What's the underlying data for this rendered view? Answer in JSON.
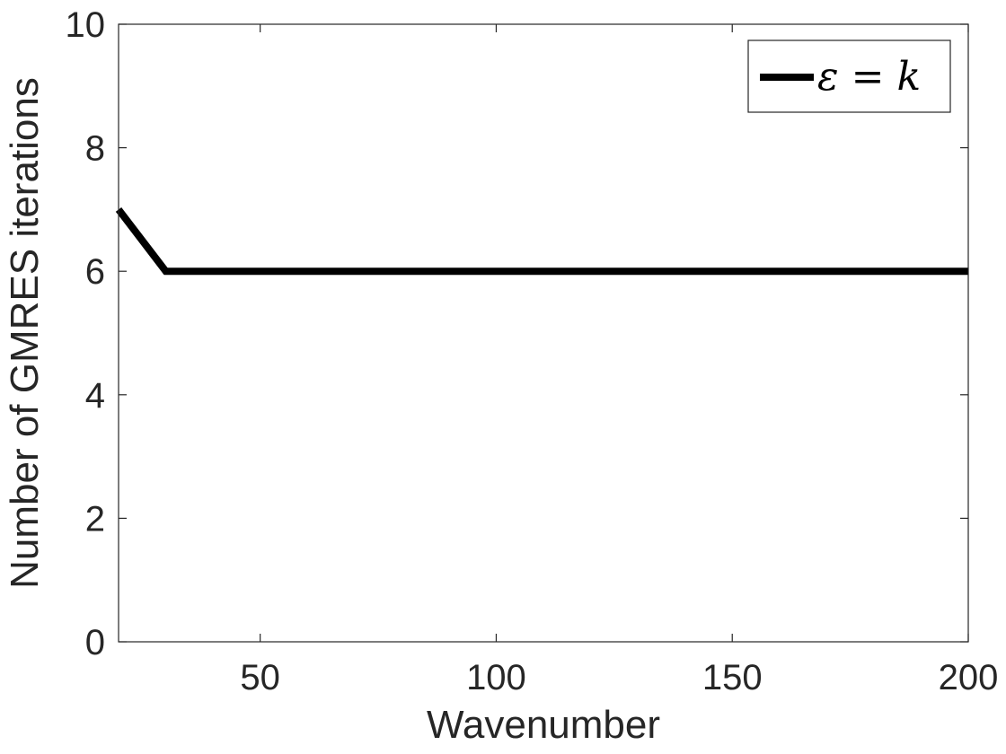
{
  "chart_data": {
    "type": "line",
    "title": "",
    "xlabel": "Wavenumber",
    "ylabel": "Number of GMRES iterations",
    "xlim": [
      20,
      200
    ],
    "ylim": [
      0,
      10
    ],
    "xticks": [
      50,
      100,
      150,
      200
    ],
    "yticks": [
      0,
      2,
      4,
      6,
      8,
      10
    ],
    "grid": false,
    "legend_position": "top-right",
    "series": [
      {
        "name": "ε = k",
        "color": "#000000",
        "x": [
          20,
          30,
          40,
          50,
          60,
          70,
          80,
          90,
          100,
          110,
          120,
          130,
          140,
          150,
          160,
          170,
          180,
          190,
          200
        ],
        "y": [
          7,
          6,
          6,
          6,
          6,
          6,
          6,
          6,
          6,
          6,
          6,
          6,
          6,
          6,
          6,
          6,
          6,
          6,
          6
        ]
      }
    ]
  }
}
